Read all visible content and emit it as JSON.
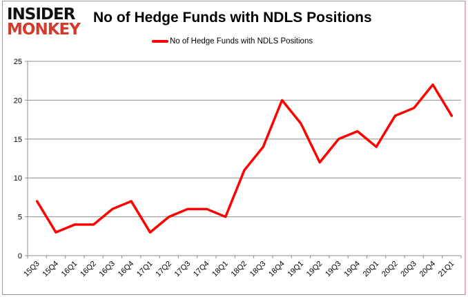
{
  "logo": {
    "line1": "INSIDER",
    "line2": "MONKEY"
  },
  "chart_data": {
    "type": "line",
    "title": "No of Hedge Funds with NDLS Positions",
    "categories": [
      "15Q3",
      "15Q4",
      "16Q1",
      "16Q2",
      "16Q3",
      "16Q4",
      "17Q1",
      "17Q2",
      "17Q3",
      "17Q4",
      "18Q1",
      "18Q2",
      "18Q3",
      "18Q4",
      "19Q1",
      "19Q2",
      "19Q3",
      "19Q4",
      "20Q1",
      "20Q2",
      "20Q3",
      "20Q4",
      "21Q1"
    ],
    "series": [
      {
        "name": "No of Hedge Funds with NDLS Positions",
        "color": "#ff0000",
        "values": [
          7,
          3,
          4,
          4,
          6,
          7,
          3,
          5,
          6,
          6,
          5,
          11,
          14,
          20,
          17,
          12,
          15,
          16,
          14,
          18,
          19,
          22,
          18
        ]
      }
    ],
    "ylim": [
      0,
      25
    ],
    "yticks": [
      0,
      5,
      10,
      15,
      20,
      25
    ],
    "grid": true,
    "legend": "top"
  }
}
